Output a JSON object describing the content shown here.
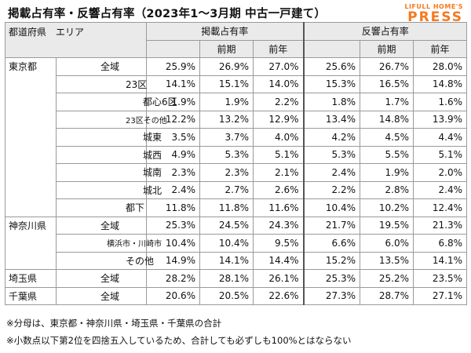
{
  "title": "掲載占有率・反響占有率（2023年1～3月期 中古一戸建て）",
  "logo": {
    "line1": "LIFULL HOME'S",
    "line2": "PRESS"
  },
  "header": {
    "pref_area": "都道府県　エリア",
    "listing_group": "掲載占有率",
    "response_group": "反響占有率",
    "prev_period": "前期",
    "prev_year": "前年"
  },
  "rows": [
    {
      "pref": "東京都",
      "area": "全域",
      "level": 0,
      "values": [
        "25.9%",
        "26.9%",
        "27.0%",
        "25.6%",
        "26.7%",
        "28.0%"
      ]
    },
    {
      "pref": "",
      "area": "23区",
      "level": 1,
      "values": [
        "14.1%",
        "15.1%",
        "14.0%",
        "15.3%",
        "16.5%",
        "14.8%"
      ]
    },
    {
      "pref": "",
      "area": "都心6区",
      "level": 2,
      "values": [
        "1.9%",
        "1.9%",
        "2.2%",
        "1.8%",
        "1.7%",
        "1.6%"
      ]
    },
    {
      "pref": "",
      "area": "23区その他",
      "level": 3,
      "values": [
        "12.2%",
        "13.2%",
        "12.9%",
        "13.4%",
        "14.8%",
        "13.9%"
      ]
    },
    {
      "pref": "",
      "area": "城東",
      "level": 2,
      "values": [
        "3.5%",
        "3.7%",
        "4.0%",
        "4.2%",
        "4.5%",
        "4.4%"
      ]
    },
    {
      "pref": "",
      "area": "城西",
      "level": 2,
      "values": [
        "4.9%",
        "5.3%",
        "5.1%",
        "5.3%",
        "5.5%",
        "5.1%"
      ]
    },
    {
      "pref": "",
      "area": "城南",
      "level": 2,
      "values": [
        "2.3%",
        "2.3%",
        "2.1%",
        "2.4%",
        "1.9%",
        "2.0%"
      ]
    },
    {
      "pref": "",
      "area": "城北",
      "level": 2,
      "values": [
        "2.4%",
        "2.7%",
        "2.6%",
        "2.2%",
        "2.8%",
        "2.4%"
      ]
    },
    {
      "pref": "",
      "area": "都下",
      "level": 1,
      "values": [
        "11.8%",
        "11.8%",
        "11.6%",
        "10.4%",
        "10.2%",
        "12.4%"
      ]
    },
    {
      "pref": "神奈川県",
      "area": "全域",
      "level": 0,
      "values": [
        "25.3%",
        "24.5%",
        "24.3%",
        "21.7%",
        "19.5%",
        "21.3%"
      ]
    },
    {
      "pref": "",
      "area": "横浜市・川崎市",
      "level": 4,
      "values": [
        "10.4%",
        "10.4%",
        "9.5%",
        "6.6%",
        "6.0%",
        "6.8%"
      ]
    },
    {
      "pref": "",
      "area": "その他",
      "level": 1,
      "values": [
        "14.9%",
        "14.1%",
        "14.4%",
        "15.2%",
        "13.5%",
        "14.1%"
      ]
    },
    {
      "pref": "埼玉県",
      "area": "全域",
      "level": 0,
      "values": [
        "28.2%",
        "28.1%",
        "26.1%",
        "25.3%",
        "25.2%",
        "23.5%"
      ]
    },
    {
      "pref": "千葉県",
      "area": "全域",
      "level": 0,
      "values": [
        "20.6%",
        "20.5%",
        "22.6%",
        "27.3%",
        "28.7%",
        "27.1%"
      ]
    }
  ],
  "notes": [
    "※分母は、東京都・神奈川県・埼玉県・千葉県の合計",
    "※小数点以下第2位を四捨五入しているため、合計しても必ずしも100%とはならない"
  ]
}
